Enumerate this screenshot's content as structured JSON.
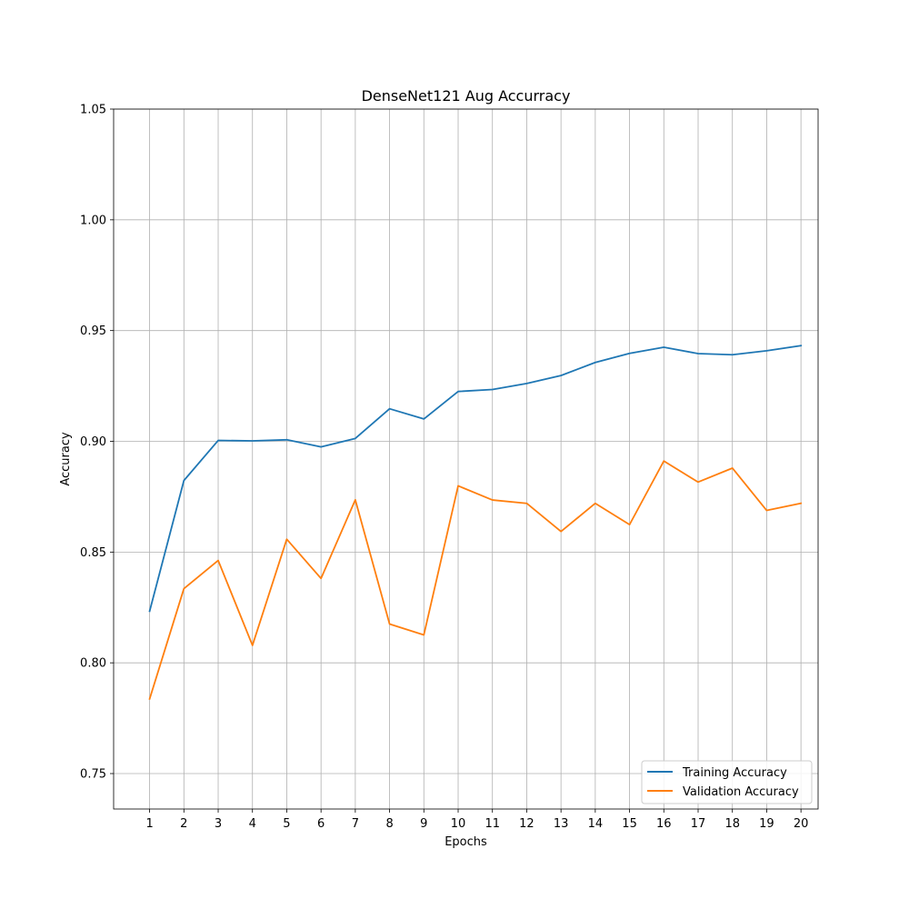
{
  "chart_data": {
    "type": "line",
    "title": "DenseNet121 Aug Accurracy",
    "xlabel": "Epochs",
    "ylabel": "Accuracy",
    "x": [
      1,
      2,
      3,
      4,
      5,
      6,
      7,
      8,
      9,
      10,
      11,
      12,
      13,
      14,
      15,
      16,
      17,
      18,
      19,
      20
    ],
    "xticks": [
      "1",
      "2",
      "3",
      "4",
      "5",
      "6",
      "7",
      "8",
      "9",
      "10",
      "11",
      "12",
      "13",
      "14",
      "15",
      "16",
      "17",
      "18",
      "19",
      "20"
    ],
    "xlim": [
      -0.05,
      20.5
    ],
    "ylim": [
      0.734,
      1.05
    ],
    "yticks": [
      0.75,
      0.8,
      0.85,
      0.9,
      0.95,
      1.0,
      1.05
    ],
    "yticklabels": [
      "0.75",
      "0.80",
      "0.85",
      "0.90",
      "0.95",
      "1.00",
      "1.05"
    ],
    "grid": true,
    "legend_position": "lower right",
    "series": [
      {
        "name": "Training Accuracy",
        "color": "#1f77b4",
        "values": [
          0.8233,
          0.8823,
          0.9004,
          0.9002,
          0.9007,
          0.8975,
          0.9013,
          0.9147,
          0.9101,
          0.9225,
          0.9234,
          0.9261,
          0.9297,
          0.9356,
          0.9397,
          0.9425,
          0.9396,
          0.9391,
          0.9409,
          0.9432
        ]
      },
      {
        "name": "Validation Accuracy",
        "color": "#ff7f0e",
        "values": [
          0.7837,
          0.8335,
          0.8462,
          0.8079,
          0.8558,
          0.8381,
          0.8736,
          0.8175,
          0.8126,
          0.8799,
          0.8735,
          0.872,
          0.8593,
          0.872,
          0.8624,
          0.8911,
          0.8816,
          0.8879,
          0.8688,
          0.872
        ]
      }
    ]
  }
}
